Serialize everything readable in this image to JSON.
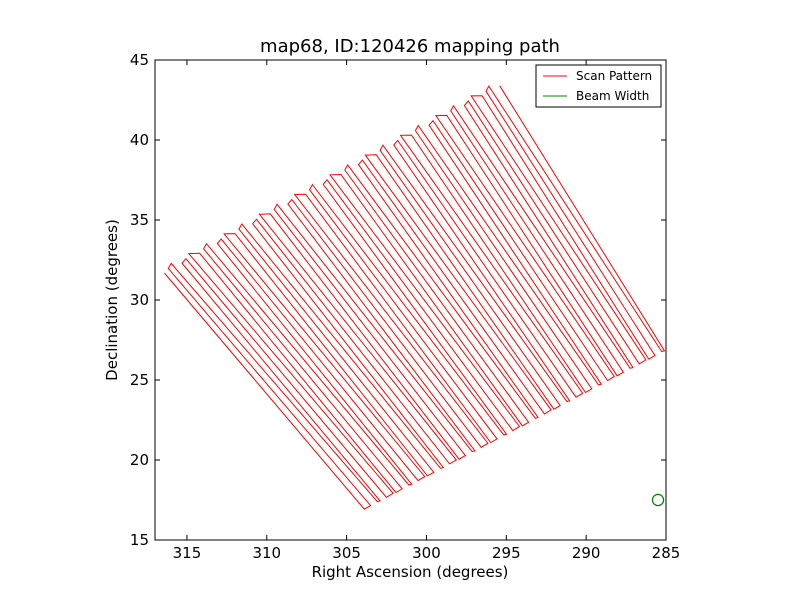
{
  "chart_data": {
    "type": "line",
    "title": "map68, ID:120426 mapping path",
    "xlabel": "Right Ascension (degrees)",
    "ylabel": "Declination (degrees)",
    "xlim": [
      317,
      285
    ],
    "ylim": [
      15,
      45
    ],
    "x_inverted": true,
    "x_ticks": [
      315,
      310,
      305,
      300,
      295,
      290,
      285
    ],
    "y_ticks": [
      15,
      20,
      25,
      30,
      35,
      40,
      45
    ],
    "grid": false,
    "legend_position": "top-right",
    "scan_region": {
      "corners": [
        {
          "ra": 316.6,
          "dec": 31.8
        },
        {
          "ra": 295.6,
          "dec": 43.5
        },
        {
          "ra": 285.0,
          "dec": 26.9
        },
        {
          "ra": 303.8,
          "dec": 17.0
        }
      ],
      "num_scan_lines": 58
    },
    "series": [
      {
        "name": "Scan Pattern",
        "color": "#ff0000",
        "style": "line"
      },
      {
        "name": "Beam Width",
        "color": "#008000",
        "style": "circle",
        "center": {
          "ra": 285.5,
          "dec": 17.5
        },
        "radius_deg": 0.35
      }
    ]
  }
}
